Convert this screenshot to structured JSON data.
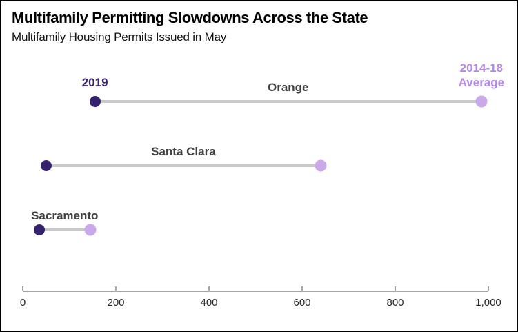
{
  "title": "Multifamily Permitting Slowdowns Across the State",
  "subtitle": "Multifamily Housing Permits Issued in May",
  "legend": {
    "series1_label": "2019",
    "series2_label_lines": [
      "2014-18",
      "Average"
    ]
  },
  "colors": {
    "series1_dot": "#35216E",
    "series2_dot": "#C9A9EA",
    "series1_label": "#35216E",
    "series2_label": "#B488E4",
    "connector": "#C9C9C9",
    "axis": "#A6A6A6",
    "category_label": "#404040",
    "tick_label": "#262626"
  },
  "chart_data": {
    "type": "dumbbell",
    "title": "Multifamily Permitting Slowdowns Across the State",
    "subtitle": "Multifamily Housing Permits Issued in May",
    "categories": [
      "Orange",
      "Santa Clara",
      "Sacramento"
    ],
    "series": [
      {
        "name": "2019",
        "values": [
          155,
          50,
          35
        ]
      },
      {
        "name": "2014-18 Average",
        "values": [
          985,
          640,
          145
        ]
      }
    ],
    "xlabel": "",
    "ylabel": "",
    "xlim": [
      0,
      1000
    ],
    "x_ticks": [
      0,
      200,
      400,
      600,
      800,
      1000
    ],
    "x_tick_labels": [
      "0",
      "200",
      "400",
      "600",
      "800",
      "1,000"
    ],
    "grid": false,
    "legend_position": "inline-above-first-row"
  }
}
